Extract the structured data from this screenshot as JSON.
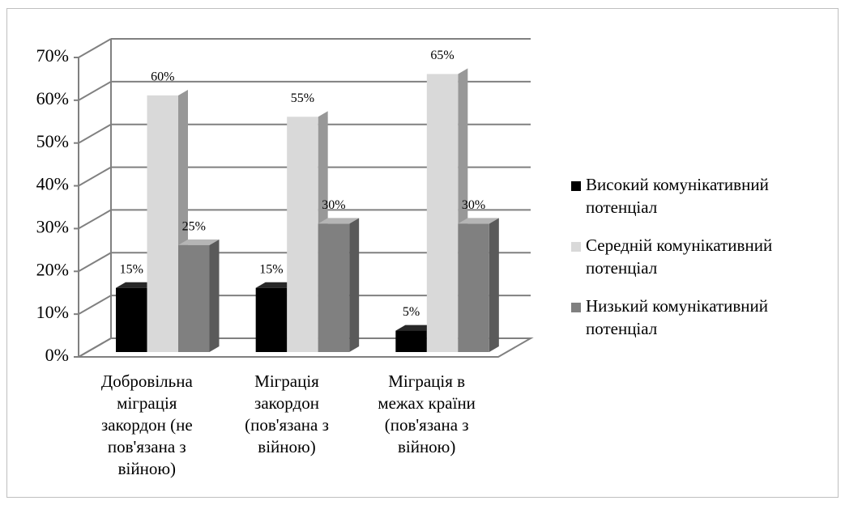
{
  "chart_data": {
    "type": "bar3d",
    "categories": [
      "Добровільна міграція закордон (не пов'язана з війною)",
      "Міграція закордон (пов'язана з війною)",
      "Міграція в межах країни (пов'язана з війною)"
    ],
    "series": [
      {
        "name": "Високий комунікативний потенціал",
        "color": "#000000",
        "values": [
          15,
          15,
          5
        ],
        "value_labels": [
          "15%",
          "15%",
          "5%"
        ]
      },
      {
        "name": "Середній комунікативний потенціал",
        "color": "#d9d9d9",
        "values": [
          60,
          55,
          65
        ],
        "value_labels": [
          "60%",
          "55%",
          "65%"
        ]
      },
      {
        "name": "Низький комунікативний потенціал",
        "color": "#808080",
        "values": [
          25,
          30,
          30
        ],
        "value_labels": [
          "25%",
          "30%",
          "30%"
        ]
      }
    ],
    "ylim": [
      0,
      70
    ],
    "yticks": [
      {
        "value": 0,
        "label": "0%"
      },
      {
        "value": 10,
        "label": "10%"
      },
      {
        "value": 20,
        "label": "20%"
      },
      {
        "value": 30,
        "label": "30%"
      },
      {
        "value": 40,
        "label": "40%"
      },
      {
        "value": 50,
        "label": "50%"
      },
      {
        "value": 60,
        "label": "60%"
      },
      {
        "value": 70,
        "label": "70%"
      }
    ],
    "grid": true,
    "legend": "right"
  }
}
